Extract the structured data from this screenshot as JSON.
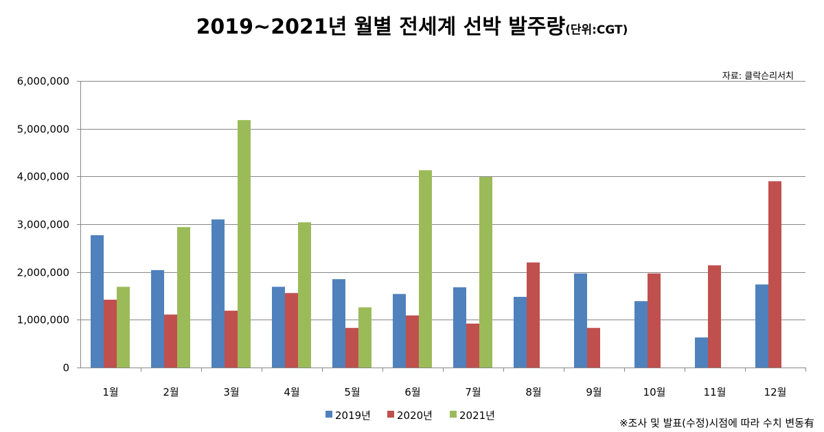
{
  "title": "2019~2021년 월별 전세계 선박 발주량",
  "title_unit": "(단위:CGT)",
  "source": "자료: 클락슨리서치",
  "note": "※조사 및 발표(수정)시점에 따라 수치 변동有",
  "chart_data": {
    "type": "bar",
    "title": "2019~2021년 월별 전세계 선박 발주량",
    "xlabel": "",
    "ylabel": "CGT",
    "ylim": [
      0,
      6000000
    ],
    "yticks": [
      0,
      1000000,
      2000000,
      3000000,
      4000000,
      5000000,
      6000000
    ],
    "ytick_labels": [
      "0",
      "1,000,000",
      "2,000,000",
      "3,000,000",
      "4,000,000",
      "5,000,000",
      "6,000,000"
    ],
    "grid": true,
    "legend_position": "bottom",
    "categories": [
      "1월",
      "2월",
      "3월",
      "4월",
      "5월",
      "6월",
      "7월",
      "8월",
      "9월",
      "10월",
      "11월",
      "12월"
    ],
    "series": [
      {
        "name": "2019년",
        "color": "#4F81BD",
        "values": [
          2770000,
          2040000,
          3100000,
          1690000,
          1850000,
          1540000,
          1680000,
          1480000,
          1970000,
          1390000,
          630000,
          1740000
        ]
      },
      {
        "name": "2020년",
        "color": "#C0504D",
        "values": [
          1420000,
          1110000,
          1190000,
          1560000,
          830000,
          1090000,
          920000,
          2200000,
          830000,
          1970000,
          2140000,
          3900000
        ]
      },
      {
        "name": "2021년",
        "color": "#9BBB59",
        "values": [
          1690000,
          2940000,
          5180000,
          3040000,
          1260000,
          4130000,
          3990000,
          null,
          null,
          null,
          null,
          null
        ]
      }
    ]
  }
}
